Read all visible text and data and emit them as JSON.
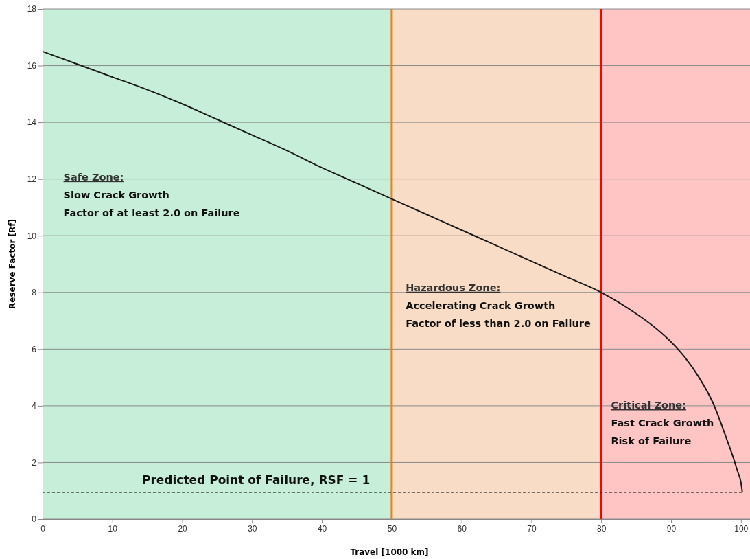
{
  "chart_data": {
    "type": "line",
    "xlabel": "Travel [1000 km]",
    "ylabel": "Reserve Factor [Rf]",
    "xlim": [
      0,
      101.3
    ],
    "ylim": [
      0,
      18
    ],
    "xticks": [
      0,
      10,
      20,
      30,
      40,
      50,
      60,
      70,
      80,
      90,
      100
    ],
    "yticks": [
      0,
      2,
      4,
      6,
      8,
      10,
      12,
      14,
      16,
      18
    ],
    "grid": "y",
    "marker": "none",
    "line_style": "solid",
    "series": [
      {
        "color": "#1a1a1a",
        "x": [
          0,
          5,
          10,
          15,
          20,
          25,
          30,
          35,
          40,
          45,
          50,
          55,
          60,
          65,
          70,
          75,
          80,
          85,
          88,
          90,
          92,
          94,
          96,
          98,
          99,
          99.5,
          100,
          100.2
        ],
        "values": [
          16.5,
          16.05,
          15.6,
          15.15,
          14.65,
          14.1,
          13.55,
          13,
          12.4,
          11.85,
          11.3,
          10.75,
          10.2,
          9.65,
          9.1,
          8.55,
          8,
          7.25,
          6.7,
          6.25,
          5.7,
          5.0,
          4.1,
          2.8,
          2.1,
          1.7,
          1.3,
          0.95
        ]
      }
    ],
    "bands": [
      {
        "axis": "x",
        "from": 0,
        "to": 50,
        "color": "#c6eed9",
        "label": "Safe Zone:\nSlow Crack Growth\nFactor of at least 2.0 on Failure"
      },
      {
        "axis": "x",
        "from": 50,
        "to": 80,
        "color": "#f8dcc5",
        "label": "Hazardous Zone:\nAccelerating Crack Growth\nFactor of less than 2.0 on Failure"
      },
      {
        "axis": "x",
        "from": 80,
        "to": 101.3,
        "color": "#ffc5c5",
        "label": "Critical Zone:\nFast Crack Growth\nRisk of Failure"
      }
    ],
    "ref_lines": [
      {
        "axis": "x",
        "value": 50,
        "color": "#f07f18"
      },
      {
        "axis": "x",
        "value": 80,
        "color": "#ff0000"
      },
      {
        "axis": "y",
        "value": 0.95,
        "label": "Predicted Point of Failure, RSF = 1",
        "color": "#000000",
        "line_style": "dashed"
      }
    ]
  }
}
